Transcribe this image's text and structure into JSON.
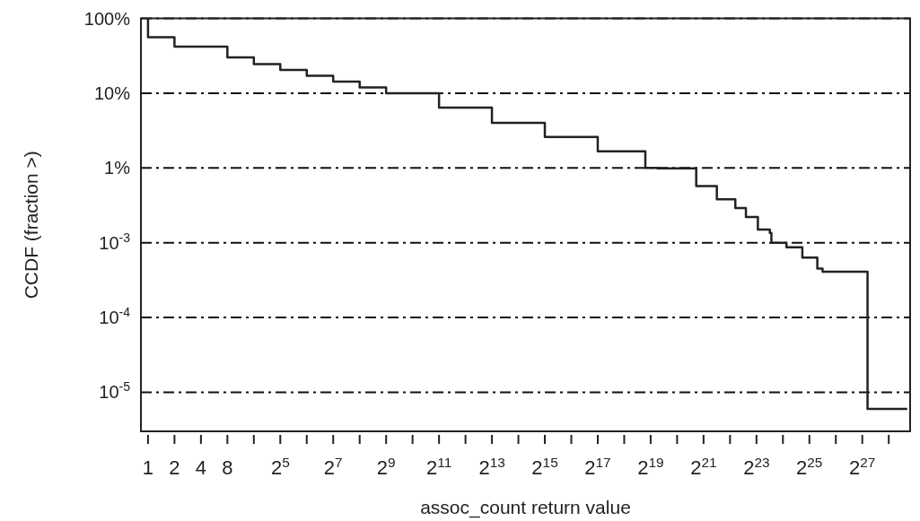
{
  "chart_data": {
    "type": "step",
    "xlabel": "assoc_count return value",
    "ylabel": "CCDF (fraction >)",
    "log": "xy",
    "grid": "y",
    "line_style": "solid",
    "marker": "none",
    "xlim": [
      0.83,
      470000000
    ],
    "xticks": [
      1,
      2,
      4,
      8,
      {
        "value": 16,
        "label": null
      },
      {
        "value": 32,
        "label": "2$^{5}$"
      },
      {
        "value": 64,
        "label": null
      },
      {
        "value": 128,
        "label": "2$^{7}$"
      },
      {
        "value": 256,
        "label": null
      },
      {
        "value": 512,
        "label": "2$^{9}$"
      },
      {
        "value": 1024,
        "label": null
      },
      {
        "value": 2048,
        "label": "2$^{11}$"
      },
      {
        "value": 4096,
        "label": null
      },
      {
        "value": 8192,
        "label": "2$^{13}$"
      },
      {
        "value": 16384,
        "label": null
      },
      {
        "value": 32768,
        "label": "2$^{15}$"
      },
      {
        "value": 65536,
        "label": null
      },
      {
        "value": 131072,
        "label": "2$^{17}$"
      },
      {
        "value": 262144,
        "label": null
      },
      {
        "value": 524288,
        "label": "2$^{19}$"
      },
      {
        "value": 1048576,
        "label": null
      },
      {
        "value": 2097152,
        "label": "2$^{21}$"
      },
      {
        "value": 4194304,
        "label": null
      },
      {
        "value": 8388608,
        "label": "2$^{23}$"
      },
      {
        "value": 16777216,
        "label": null
      },
      {
        "value": 33554432,
        "label": "2$^{25}$"
      },
      {
        "value": 67108864,
        "label": null
      },
      {
        "value": 134217728,
        "label": "2$^{27}$"
      },
      {
        "value": 268435456,
        "label": null
      }
    ],
    "ylim": [
      3e-06,
      1
    ],
    "yticks": [
      {
        "value": 1,
        "label": "100%"
      },
      {
        "value": 0.1,
        "label": "10%"
      },
      {
        "value": 0.01,
        "label": "1%"
      },
      {
        "value": 0.001,
        "label": "10$^{-3}$"
      },
      {
        "value": 0.0001,
        "label": "10$^{-4}$"
      },
      {
        "value": 1e-05,
        "label": "10$^{-5}$"
      }
    ],
    "series": [
      {
        "color": "#222222",
        "x": [
          1,
          1,
          2,
          8,
          16,
          32,
          64,
          128,
          256,
          512,
          2048,
          8192,
          32768,
          131072,
          456000,
          622000,
          1730000,
          2970000,
          4820000,
          6360000,
          8700000,
          11900000,
          12400000,
          18400000,
          27900000,
          41300000,
          47400000,
          77000000,
          154000000,
          436000000
        ],
        "values": [
          1,
          0.56,
          0.42,
          0.3,
          0.245,
          0.205,
          0.171,
          0.143,
          0.119,
          0.1,
          0.064,
          0.04,
          0.026,
          0.0167,
          0.01,
          0.0099,
          0.0057,
          0.0038,
          0.0029,
          0.0022,
          0.0015,
          0.00135,
          0.001,
          0.00087,
          0.00063,
          0.00045,
          0.00041,
          0.00041,
          6e-06,
          6e-06
        ]
      }
    ]
  }
}
